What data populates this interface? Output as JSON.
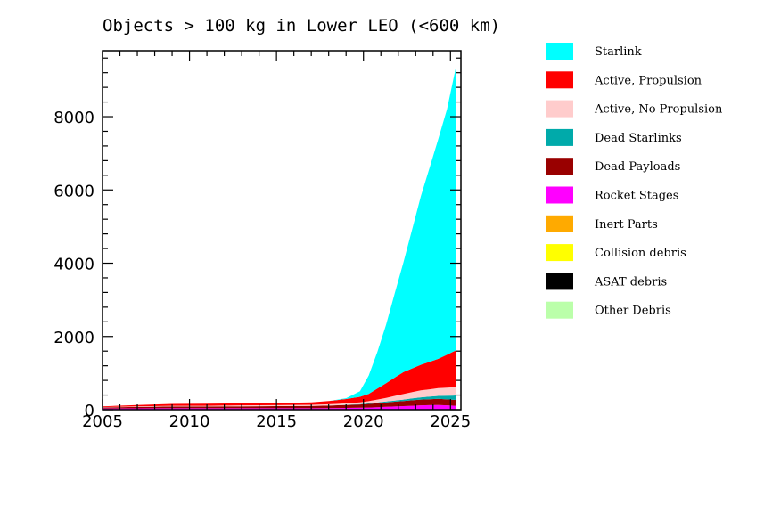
{
  "chart_data": {
    "type": "area",
    "stacked": true,
    "title": "Objects > 100 kg in Lower LEO (<600 km)",
    "xlabel": "",
    "ylabel": "",
    "xlim": [
      2005,
      2025.6
    ],
    "ylim": [
      0,
      9800
    ],
    "xticks": [
      2005,
      2010,
      2015,
      2020,
      2025
    ],
    "yticks": [
      0,
      2000,
      4000,
      6000,
      8000
    ],
    "legend_position": "right",
    "x": [
      2005,
      2007,
      2009,
      2011,
      2013,
      2015,
      2017,
      2018,
      2019,
      2019.8,
      2020.3,
      2020.8,
      2021.3,
      2021.8,
      2022.3,
      2022.8,
      2023.3,
      2023.8,
      2024.3,
      2024.8,
      2025.3
    ],
    "series": [
      {
        "name": "Other Debris",
        "color": "#bbffaa",
        "values": [
          5,
          5,
          5,
          5,
          5,
          5,
          5,
          5,
          5,
          5,
          5,
          5,
          5,
          5,
          5,
          5,
          5,
          5,
          5,
          5,
          5
        ]
      },
      {
        "name": "ASAT debris",
        "color": "#000000",
        "values": [
          0,
          0,
          0,
          0,
          0,
          0,
          0,
          0,
          0,
          0,
          0,
          0,
          0,
          0,
          0,
          0,
          0,
          0,
          0,
          0,
          0
        ]
      },
      {
        "name": "Collision debris",
        "color": "#ffff00",
        "values": [
          0,
          0,
          0,
          0,
          0,
          0,
          0,
          0,
          0,
          0,
          0,
          0,
          0,
          0,
          0,
          0,
          0,
          0,
          0,
          0,
          0
        ]
      },
      {
        "name": "Inert Parts",
        "color": "#ffaa00",
        "values": [
          3,
          3,
          3,
          3,
          3,
          3,
          3,
          3,
          3,
          3,
          3,
          3,
          3,
          3,
          3,
          3,
          3,
          3,
          3,
          3,
          3
        ]
      },
      {
        "name": "Rocket Stages",
        "color": "#ff00ff",
        "values": [
          25,
          28,
          30,
          30,
          30,
          30,
          30,
          35,
          40,
          45,
          50,
          60,
          70,
          80,
          90,
          100,
          110,
          115,
          120,
          110,
          100
        ]
      },
      {
        "name": "Dead Payloads",
        "color": "#990000",
        "values": [
          30,
          40,
          50,
          50,
          55,
          60,
          65,
          70,
          80,
          90,
          100,
          110,
          120,
          130,
          140,
          150,
          160,
          165,
          170,
          165,
          160
        ]
      },
      {
        "name": "Dead Starlinks",
        "color": "#00aaaa",
        "values": [
          0,
          0,
          0,
          0,
          0,
          0,
          0,
          0,
          5,
          10,
          15,
          20,
          25,
          30,
          40,
          50,
          60,
          70,
          80,
          100,
          120
        ]
      },
      {
        "name": "Active, No Propulsion",
        "color": "#ffcccc",
        "values": [
          10,
          15,
          20,
          20,
          25,
          25,
          30,
          35,
          40,
          50,
          60,
          80,
          100,
          130,
          150,
          170,
          190,
          200,
          210,
          220,
          230
        ]
      },
      {
        "name": "Active, Propulsion",
        "color": "#ff0000",
        "values": [
          20,
          35,
          50,
          55,
          60,
          60,
          70,
          90,
          120,
          150,
          200,
          300,
          400,
          500,
          600,
          650,
          700,
          750,
          800,
          900,
          1000
        ]
      },
      {
        "name": "Starlink",
        "color": "#00ffff",
        "values": [
          0,
          0,
          0,
          0,
          0,
          0,
          0,
          0,
          20,
          150,
          500,
          1000,
          1600,
          2300,
          3000,
          3800,
          4600,
          5300,
          6000,
          6700,
          7700
        ]
      }
    ]
  }
}
